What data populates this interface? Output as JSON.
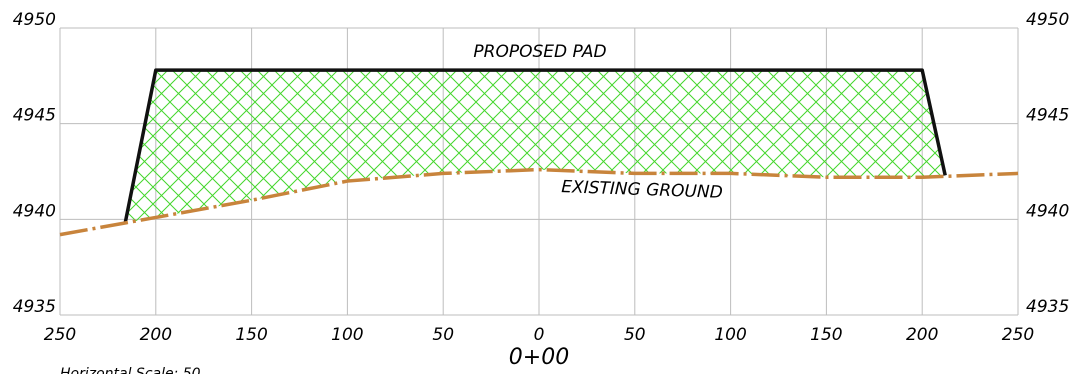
{
  "chart_data": {
    "type": "line",
    "center_label": "0+00",
    "footer": "Horizontal Scale: 50",
    "annotations": [
      "PROPOSED PAD",
      "EXISTING GROUND"
    ],
    "xlim": [
      -250,
      250
    ],
    "xticks": [
      {
        "value": -250,
        "label": "250"
      },
      {
        "value": -200,
        "label": "200"
      },
      {
        "value": -150,
        "label": "150"
      },
      {
        "value": -100,
        "label": "100"
      },
      {
        "value": -50,
        "label": "50"
      },
      0,
      50,
      100,
      150,
      200,
      250
    ],
    "ylim": [
      4935,
      4950
    ],
    "yticks": [
      4935,
      4940,
      4945,
      4950
    ],
    "grid": true,
    "series": [
      {
        "name": "PROPOSED PAD",
        "color": "#111111",
        "x": [
          -216,
          -200,
          200,
          212
        ],
        "values": [
          4939.8,
          4947.8,
          4947.8,
          4942.3
        ]
      },
      {
        "name": "EXISTING GROUND",
        "color": "#c8843c",
        "x": [
          -250,
          -200,
          -150,
          -100,
          -50,
          0,
          50,
          100,
          150,
          200,
          250
        ],
        "values": [
          4939.2,
          4940.1,
          4941.0,
          4942.0,
          4942.4,
          4942.6,
          4942.4,
          4942.4,
          4942.2,
          4942.2,
          4942.4
        ]
      }
    ]
  }
}
